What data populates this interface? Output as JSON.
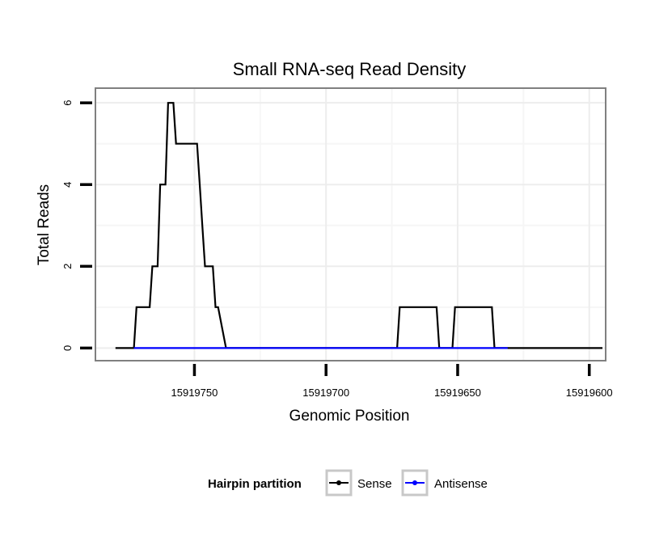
{
  "chart_data": {
    "type": "line",
    "title": "Small RNA-seq Read Density",
    "xlabel": "Genomic Position",
    "ylabel": "Total Reads",
    "x_reversed": true,
    "xlim": [
      15919787,
      15919595
    ],
    "ylim": [
      -0.25,
      6.3
    ],
    "x_ticks": [
      15919750,
      15919700,
      15919650,
      15919600
    ],
    "x_tick_labels": [
      "15919750",
      "15919700",
      "15919650",
      "15919600"
    ],
    "y_ticks": [
      0,
      2,
      4,
      6
    ],
    "y_tick_labels": [
      "0",
      "2",
      "4",
      "6"
    ],
    "grid": true,
    "legend": {
      "title": "Hairpin partition",
      "position": "bottom",
      "entries": [
        "Sense",
        "Antisense"
      ]
    },
    "series": [
      {
        "name": "Sense",
        "color": "#000000",
        "x": [
          15919780,
          15919773,
          15919772,
          15919767,
          15919766,
          15919764,
          15919763,
          15919761,
          15919760,
          15919758,
          15919757,
          15919755,
          15919749,
          15919748,
          15919747,
          15919746,
          15919743,
          15919742,
          15919741,
          15919738,
          15919731,
          15919730,
          15919727,
          15919726,
          15919725,
          15919724,
          15919724,
          15919673,
          15919672,
          15919658,
          15919657,
          15919652,
          15919651,
          15919637,
          15919636,
          15919631,
          15919630,
          15919595
        ],
        "values": [
          0,
          0,
          1,
          1,
          2,
          2,
          4,
          4,
          6,
          6,
          5,
          5,
          5,
          4,
          3,
          2,
          2,
          1,
          1,
          0,
          0,
          0,
          0,
          0,
          0,
          0,
          0,
          0,
          1,
          1,
          0,
          0,
          1,
          1,
          0,
          0,
          0,
          0
        ]
      },
      {
        "name": "Antisense",
        "color": "#0000ff",
        "x": [
          15919773,
          15919738,
          15919672,
          15919657,
          15919652,
          15919631
        ],
        "values": [
          0,
          0,
          0,
          0,
          0,
          0
        ]
      }
    ]
  }
}
